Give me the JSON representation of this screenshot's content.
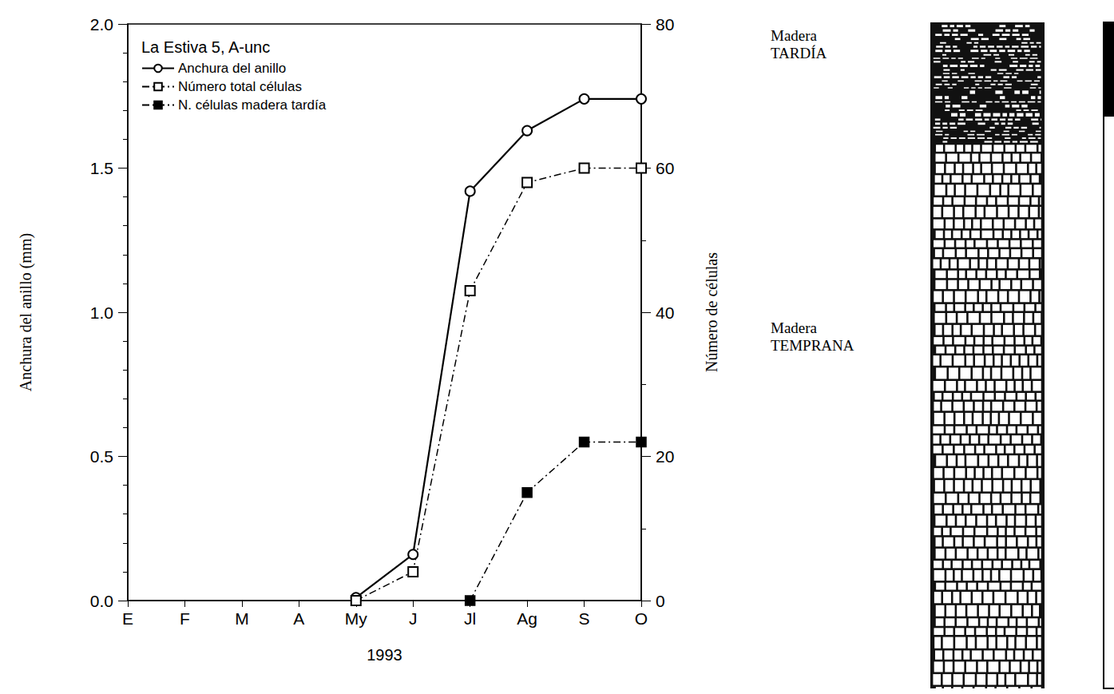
{
  "chart_data": {
    "type": "line",
    "title": "La Estiva 5, A-unc",
    "x_label": "1993",
    "y_label": "Anchura del anillo (mm)",
    "y2_label": "Número de células",
    "categories": [
      "E",
      "F",
      "M",
      "A",
      "My",
      "J",
      "Jl",
      "Ag",
      "S",
      "O"
    ],
    "series": [
      {
        "name": "Anchura del anillo",
        "color": "#000000",
        "marker": "open_circle",
        "line_style": "solid",
        "values": [
          null,
          null,
          null,
          null,
          0.01,
          0.16,
          1.42,
          1.63,
          1.74,
          1.74
        ]
      },
      {
        "name": "Número total células",
        "color": "#000000",
        "marker": "open_square",
        "line_style": "dashdot",
        "axis": "y2",
        "values": [
          null,
          null,
          null,
          null,
          0,
          4,
          43,
          58,
          60,
          60
        ]
      },
      {
        "name": "N. células madera tardía",
        "color": "#000000",
        "marker": "square",
        "line_style": "dashdot",
        "axis": "y2",
        "values": [
          null,
          null,
          null,
          null,
          null,
          null,
          0,
          15,
          22,
          22
        ]
      }
    ],
    "ylim": [
      0,
      2
    ],
    "yticks": [
      {
        "value": 0,
        "label": "0.0"
      },
      0.5,
      {
        "value": 1,
        "label": "1.0"
      },
      1.5,
      {
        "value": 2,
        "label": "2.0"
      }
    ],
    "y2lim": [
      0,
      80
    ],
    "y2ticks": [
      0,
      20,
      40,
      60,
      80
    ],
    "legend": "upper left",
    "grid": false,
    "annotations": [
      "Madera TARDÍA",
      "Madera TEMPRANA"
    ]
  }
}
